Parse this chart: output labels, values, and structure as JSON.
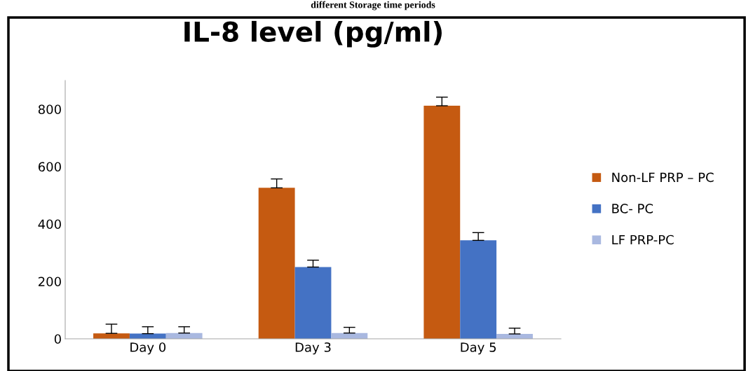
{
  "chart_data": {
    "type": "bar",
    "title": "IL-8 level (pg/ml)",
    "annotations": [
      "different Storage time periods"
    ],
    "categories": [
      "Day 0",
      "Day 3",
      "Day 5"
    ],
    "series": [
      {
        "name": "Non-LF PRP – PC",
        "color": "#c55a11",
        "values": [
          19,
          526,
          812
        ],
        "errors": [
          32,
          31,
          30
        ]
      },
      {
        "name": "BC- PC",
        "color": "#4472c4",
        "values": [
          18,
          250,
          343
        ],
        "errors": [
          24,
          24,
          27
        ]
      },
      {
        "name": "LF PRP-PC",
        "color": "#a9b8e0",
        "values": [
          20,
          20,
          17
        ],
        "errors": [
          22,
          20,
          20
        ]
      }
    ],
    "ylim": [
      0,
      900
    ],
    "yticks": [
      0,
      200,
      400,
      600,
      800
    ],
    "grid": false,
    "legend": "right"
  }
}
